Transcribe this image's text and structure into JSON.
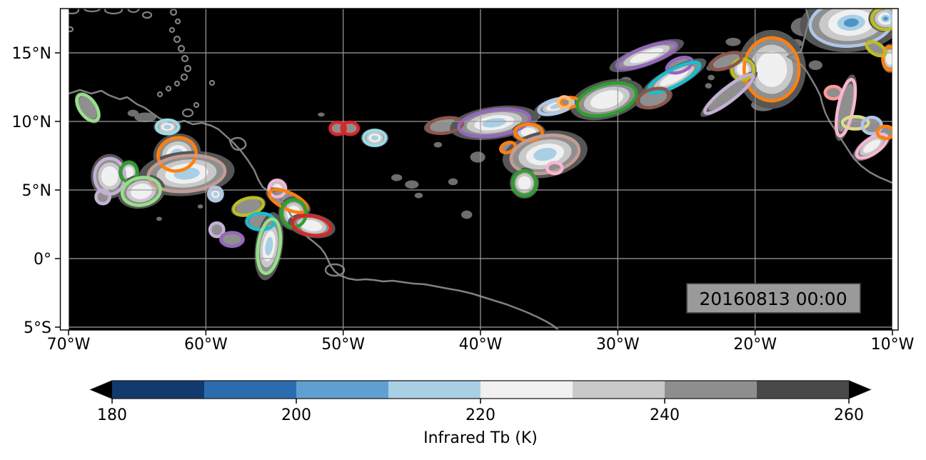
{
  "map": {
    "background": "#000000",
    "gridline_color": "#9e9e9e",
    "coastline_color": "#808080",
    "border_color": "#000000",
    "timestamp": {
      "text": "20160813 00:00",
      "box_color": "#9a9a9a",
      "border_color": "#404040",
      "text_color": "#000000"
    }
  },
  "axes": {
    "x_ticks": [
      {
        "value": -70,
        "label": "70°W"
      },
      {
        "value": -60,
        "label": "60°W"
      },
      {
        "value": -50,
        "label": "50°W"
      },
      {
        "value": -40,
        "label": "40°W"
      },
      {
        "value": -30,
        "label": "30°W"
      },
      {
        "value": -20,
        "label": "20°W"
      },
      {
        "value": -10,
        "label": "10°W"
      }
    ],
    "y_ticks": [
      {
        "value": 15,
        "label": "15°N"
      },
      {
        "value": 10,
        "label": "10°N"
      },
      {
        "value": 5,
        "label": "5°N"
      },
      {
        "value": 0,
        "label": "0°"
      },
      {
        "value": -5,
        "label": "5°S"
      }
    ]
  },
  "colorbar": {
    "label": "Infrared Tb (K)",
    "tick_values": [
      180,
      200,
      220,
      240,
      260
    ],
    "tick_labels": [
      "180",
      "200",
      "220",
      "240",
      "260"
    ],
    "vmin": 180,
    "vmax": 260,
    "bins": [
      {
        "min": 180,
        "max": 190,
        "color": "#123a6e"
      },
      {
        "min": 190,
        "max": 200,
        "color": "#2b6cb1"
      },
      {
        "min": 200,
        "max": 210,
        "color": "#5fa0d1"
      },
      {
        "min": 210,
        "max": 220,
        "color": "#a9cfe5"
      },
      {
        "min": 220,
        "max": 230,
        "color": "#f1f1f1"
      },
      {
        "min": 230,
        "max": 240,
        "color": "#c9c9c9"
      },
      {
        "min": 240,
        "max": 250,
        "color": "#8e8e8e"
      },
      {
        "min": 250,
        "max": 260,
        "color": "#494949"
      },
      {
        "min": 260,
        "max": 999,
        "color": "#000000"
      }
    ],
    "extend": "both",
    "extend_color": "#000000"
  },
  "chart_data": {
    "type": "heatmap",
    "title": "",
    "variable": "Infrared Tb (K)",
    "timestamp": "20160813 00:00",
    "lon_range": [
      -70,
      -10
    ],
    "lat_range": [
      -5.2,
      18.2
    ],
    "levels": [
      180,
      190,
      200,
      210,
      220,
      230,
      240,
      250,
      260
    ],
    "background_note": "Tb warmer than 260 K rendered black",
    "fill_colors": {
      "fringe": "#565656",
      "gray": "#8f8f8f",
      "light": "#c9c9c9",
      "white": "#f0f0f0",
      "cold": "#a9cfe5",
      "coldest": "#4f93c9"
    },
    "tracked_cells": [
      {
        "lon": -68.6,
        "lat": 11.0,
        "rx": 0.6,
        "ry": 1.1,
        "rot": -35,
        "outline": "#98df8a",
        "fill": "gray"
      },
      {
        "lon": -62.8,
        "lat": 9.6,
        "rx": 0.8,
        "ry": 0.5,
        "rot": 0,
        "outline": "#9edae5",
        "fill": "cold"
      },
      {
        "lon": -62.1,
        "lat": 7.6,
        "rx": 1.4,
        "ry": 1.2,
        "rot": -15,
        "outline": "#ff7f0e",
        "fill": "cold"
      },
      {
        "lon": -61.4,
        "lat": 6.2,
        "rx": 2.8,
        "ry": 1.3,
        "rot": -5,
        "outline": "#c49c94",
        "fill": "cold"
      },
      {
        "lon": -67.0,
        "lat": 6.0,
        "rx": 1.1,
        "ry": 1.3,
        "rot": 0,
        "outline": "#c5b0d5",
        "fill": "white"
      },
      {
        "lon": -65.6,
        "lat": 6.3,
        "rx": 0.6,
        "ry": 0.7,
        "rot": 0,
        "outline": "#2ca02c",
        "fill": "white"
      },
      {
        "lon": -64.7,
        "lat": 4.9,
        "rx": 1.4,
        "ry": 1.0,
        "rot": -10,
        "outline": "#98df8a",
        "fill": "white"
      },
      {
        "lon": -67.5,
        "lat": 4.5,
        "rx": 0.5,
        "ry": 0.5,
        "rot": 0,
        "outline": "#c5b0d5",
        "fill": "gray"
      },
      {
        "lon": -59.3,
        "lat": 4.7,
        "rx": 0.5,
        "ry": 0.5,
        "rot": 0,
        "outline": "#aec7e8",
        "fill": "cold"
      },
      {
        "lon": -59.2,
        "lat": 2.1,
        "rx": 0.5,
        "ry": 0.5,
        "rot": 0,
        "outline": "#c5b0d5",
        "fill": "gray"
      },
      {
        "lon": -58.1,
        "lat": 1.4,
        "rx": 0.8,
        "ry": 0.5,
        "rot": 0,
        "outline": "#9467bd",
        "fill": "gray"
      },
      {
        "lon": -54.8,
        "lat": 5.1,
        "rx": 0.6,
        "ry": 0.6,
        "rot": 0,
        "outline": "#f7b6d2",
        "fill": "white"
      },
      {
        "lon": -54.0,
        "lat": 4.2,
        "rx": 1.5,
        "ry": 0.6,
        "rot": 25,
        "outline": "#ff7f0e",
        "fill": "gray"
      },
      {
        "lon": -56.9,
        "lat": 3.8,
        "rx": 1.1,
        "ry": 0.6,
        "rot": -15,
        "outline": "#bcbd22",
        "fill": "gray"
      },
      {
        "lon": -53.6,
        "lat": 3.3,
        "rx": 0.9,
        "ry": 1.0,
        "rot": 0,
        "outline": "#2ca02c",
        "fill": "white"
      },
      {
        "lon": -52.3,
        "lat": 2.4,
        "rx": 1.4,
        "ry": 0.7,
        "rot": 10,
        "outline": "#d62728",
        "fill": "white"
      },
      {
        "lon": -56.0,
        "lat": 2.7,
        "rx": 1.0,
        "ry": 0.6,
        "rot": 0,
        "outline": "#17becf",
        "fill": "gray"
      },
      {
        "lon": -55.4,
        "lat": 0.9,
        "rx": 0.8,
        "ry": 2.0,
        "rot": 8,
        "outline": "#98df8a",
        "fill": "cold"
      },
      {
        "lon": -50.4,
        "lat": 9.5,
        "rx": 0.55,
        "ry": 0.45,
        "rot": 0,
        "outline": "#d62728",
        "fill": "gray"
      },
      {
        "lon": -49.5,
        "lat": 9.5,
        "rx": 0.6,
        "ry": 0.45,
        "rot": 0,
        "outline": "#d62728",
        "fill": "gray"
      },
      {
        "lon": -47.7,
        "lat": 8.8,
        "rx": 0.8,
        "ry": 0.55,
        "rot": 0,
        "outline": "#9edae5",
        "fill": "cold"
      },
      {
        "lon": -42.6,
        "lat": 9.7,
        "rx": 1.3,
        "ry": 0.55,
        "rot": -8,
        "outline": "#8c564b",
        "fill": "gray"
      },
      {
        "lon": -39.0,
        "lat": 9.9,
        "rx": 2.6,
        "ry": 0.95,
        "rot": -8,
        "outline": "#9467bd",
        "fill": "cold"
      },
      {
        "lon": -36.5,
        "lat": 9.2,
        "rx": 1.0,
        "ry": 0.6,
        "rot": 0,
        "outline": "#ff7f0e",
        "fill": "white"
      },
      {
        "lon": -38.0,
        "lat": 8.1,
        "rx": 0.55,
        "ry": 0.35,
        "rot": -20,
        "outline": "#ff7f0e",
        "fill": "gray"
      },
      {
        "lon": -35.3,
        "lat": 7.6,
        "rx": 2.5,
        "ry": 1.35,
        "rot": -10,
        "outline": "#c49c94",
        "fill": "cold"
      },
      {
        "lon": -34.6,
        "lat": 6.6,
        "rx": 0.55,
        "ry": 0.4,
        "rot": 0,
        "outline": "#f7b6d2",
        "fill": "gray"
      },
      {
        "lon": -36.8,
        "lat": 5.5,
        "rx": 0.85,
        "ry": 0.9,
        "rot": 0,
        "outline": "#2ca02c",
        "fill": "white"
      },
      {
        "lon": -34.5,
        "lat": 11.1,
        "rx": 1.3,
        "ry": 0.5,
        "rot": -15,
        "outline": "#aec7e8",
        "fill": "cold"
      },
      {
        "lon": -33.5,
        "lat": 11.4,
        "rx": 0.7,
        "ry": 0.35,
        "rot": 0,
        "outline": "#ff7f0e",
        "fill": "gray"
      },
      {
        "lon": -30.8,
        "lat": 11.6,
        "rx": 2.2,
        "ry": 1.1,
        "rot": -15,
        "outline": "#2ca02c",
        "fill": "white"
      },
      {
        "lon": -27.9,
        "lat": 14.8,
        "rx": 2.3,
        "ry": 0.6,
        "rot": -20,
        "outline": "#9467bd",
        "fill": "white"
      },
      {
        "lon": -25.5,
        "lat": 14.1,
        "rx": 0.95,
        "ry": 0.5,
        "rot": -20,
        "outline": "#9467bd",
        "fill": "gray"
      },
      {
        "lon": -25.9,
        "lat": 13.2,
        "rx": 2.1,
        "ry": 0.6,
        "rot": -28,
        "outline": "#17becf",
        "fill": "white"
      },
      {
        "lon": -27.4,
        "lat": 11.7,
        "rx": 1.2,
        "ry": 0.65,
        "rot": -15,
        "outline": "#8c564b",
        "fill": "gray"
      },
      {
        "lon": -33.9,
        "lat": 11.4,
        "rx": 0.45,
        "ry": 0.4,
        "rot": 0,
        "outline": "#ffbb78",
        "fill": "gray"
      },
      {
        "lon": -18.8,
        "lat": 13.8,
        "rx": 2.0,
        "ry": 2.3,
        "rot": 0,
        "outline": "#ff7f0e",
        "fill": "white"
      },
      {
        "lon": -20.9,
        "lat": 13.8,
        "rx": 0.8,
        "ry": 0.75,
        "rot": 0,
        "outline": "#bcbd22",
        "fill": "white"
      },
      {
        "lon": -22.1,
        "lat": 14.4,
        "rx": 1.2,
        "ry": 0.5,
        "rot": -20,
        "outline": "#8c564b",
        "fill": "gray"
      },
      {
        "lon": -21.9,
        "lat": 12.0,
        "rx": 2.2,
        "ry": 0.5,
        "rot": -38,
        "outline": "#c5b0d5",
        "fill": "gray"
      },
      {
        "lon": -13.0,
        "lat": 17.2,
        "rx": 3.0,
        "ry": 1.7,
        "rot": -5,
        "outline": "#aec7e8",
        "fill": "coldest"
      },
      {
        "lon": -10.5,
        "lat": 17.5,
        "rx": 1.0,
        "ry": 0.8,
        "rot": 0,
        "outline": "#bcbd22",
        "fill": "coldest"
      },
      {
        "lon": -14.3,
        "lat": 12.1,
        "rx": 0.6,
        "ry": 0.45,
        "rot": 0,
        "outline": "#ff9896",
        "fill": "gray"
      },
      {
        "lon": -13.4,
        "lat": 11.0,
        "rx": 0.55,
        "ry": 2.1,
        "rot": 12,
        "outline": "#f7b6d2",
        "fill": "gray"
      },
      {
        "lon": -11.5,
        "lat": 8.2,
        "rx": 1.3,
        "ry": 0.55,
        "rot": -35,
        "outline": "#f7b6d2",
        "fill": "white"
      },
      {
        "lon": -12.7,
        "lat": 9.9,
        "rx": 0.95,
        "ry": 0.45,
        "rot": 0,
        "outline": "#dbdb8d",
        "fill": "gray"
      },
      {
        "lon": -11.5,
        "lat": 9.7,
        "rx": 0.7,
        "ry": 0.6,
        "rot": 0,
        "outline": "#aec7e8",
        "fill": "gray"
      },
      {
        "lon": -10.5,
        "lat": 9.2,
        "rx": 0.6,
        "ry": 0.45,
        "rot": 0,
        "outline": "#ff7f0e",
        "fill": "gray"
      },
      {
        "lon": -10.2,
        "lat": 14.6,
        "rx": 0.5,
        "ry": 0.85,
        "rot": 0,
        "outline": "#ff7f0e",
        "fill": "white"
      },
      {
        "lon": -11.2,
        "lat": 15.3,
        "rx": 0.75,
        "ry": 0.4,
        "rot": 30,
        "outline": "#bcbd22",
        "fill": "gray"
      }
    ],
    "cloud_speckles": [
      [
        -64.4,
        10.3,
        0.8,
        0.35
      ],
      [
        -65.3,
        10.6,
        0.4,
        0.25
      ],
      [
        -51.6,
        10.5,
        0.25,
        0.15
      ],
      [
        -46.1,
        5.9,
        0.4,
        0.25
      ],
      [
        -45.0,
        5.4,
        0.5,
        0.3
      ],
      [
        -44.5,
        4.6,
        0.3,
        0.2
      ],
      [
        -42.0,
        5.6,
        0.35,
        0.25
      ],
      [
        -41.0,
        3.2,
        0.4,
        0.3
      ],
      [
        -43.1,
        8.3,
        0.3,
        0.2
      ],
      [
        -40.2,
        7.4,
        0.55,
        0.4
      ],
      [
        -36.1,
        10.4,
        0.5,
        0.3
      ],
      [
        -29.4,
        13.0,
        0.4,
        0.25
      ],
      [
        -26.8,
        12.6,
        0.6,
        0.35
      ],
      [
        -23.3,
        13.9,
        0.25,
        0.2
      ],
      [
        -23.2,
        13.2,
        0.25,
        0.2
      ],
      [
        -23.4,
        12.6,
        0.25,
        0.2
      ],
      [
        -19.4,
        11.2,
        0.9,
        0.45
      ],
      [
        -21.6,
        15.8,
        0.55,
        0.3
      ],
      [
        -17.0,
        15.7,
        0.45,
        0.3
      ],
      [
        -15.6,
        14.1,
        0.5,
        0.35
      ],
      [
        -16.4,
        16.9,
        1.0,
        0.7
      ],
      [
        -60.4,
        3.8,
        0.2,
        0.15
      ],
      [
        -63.4,
        2.9,
        0.2,
        0.15
      ]
    ]
  }
}
